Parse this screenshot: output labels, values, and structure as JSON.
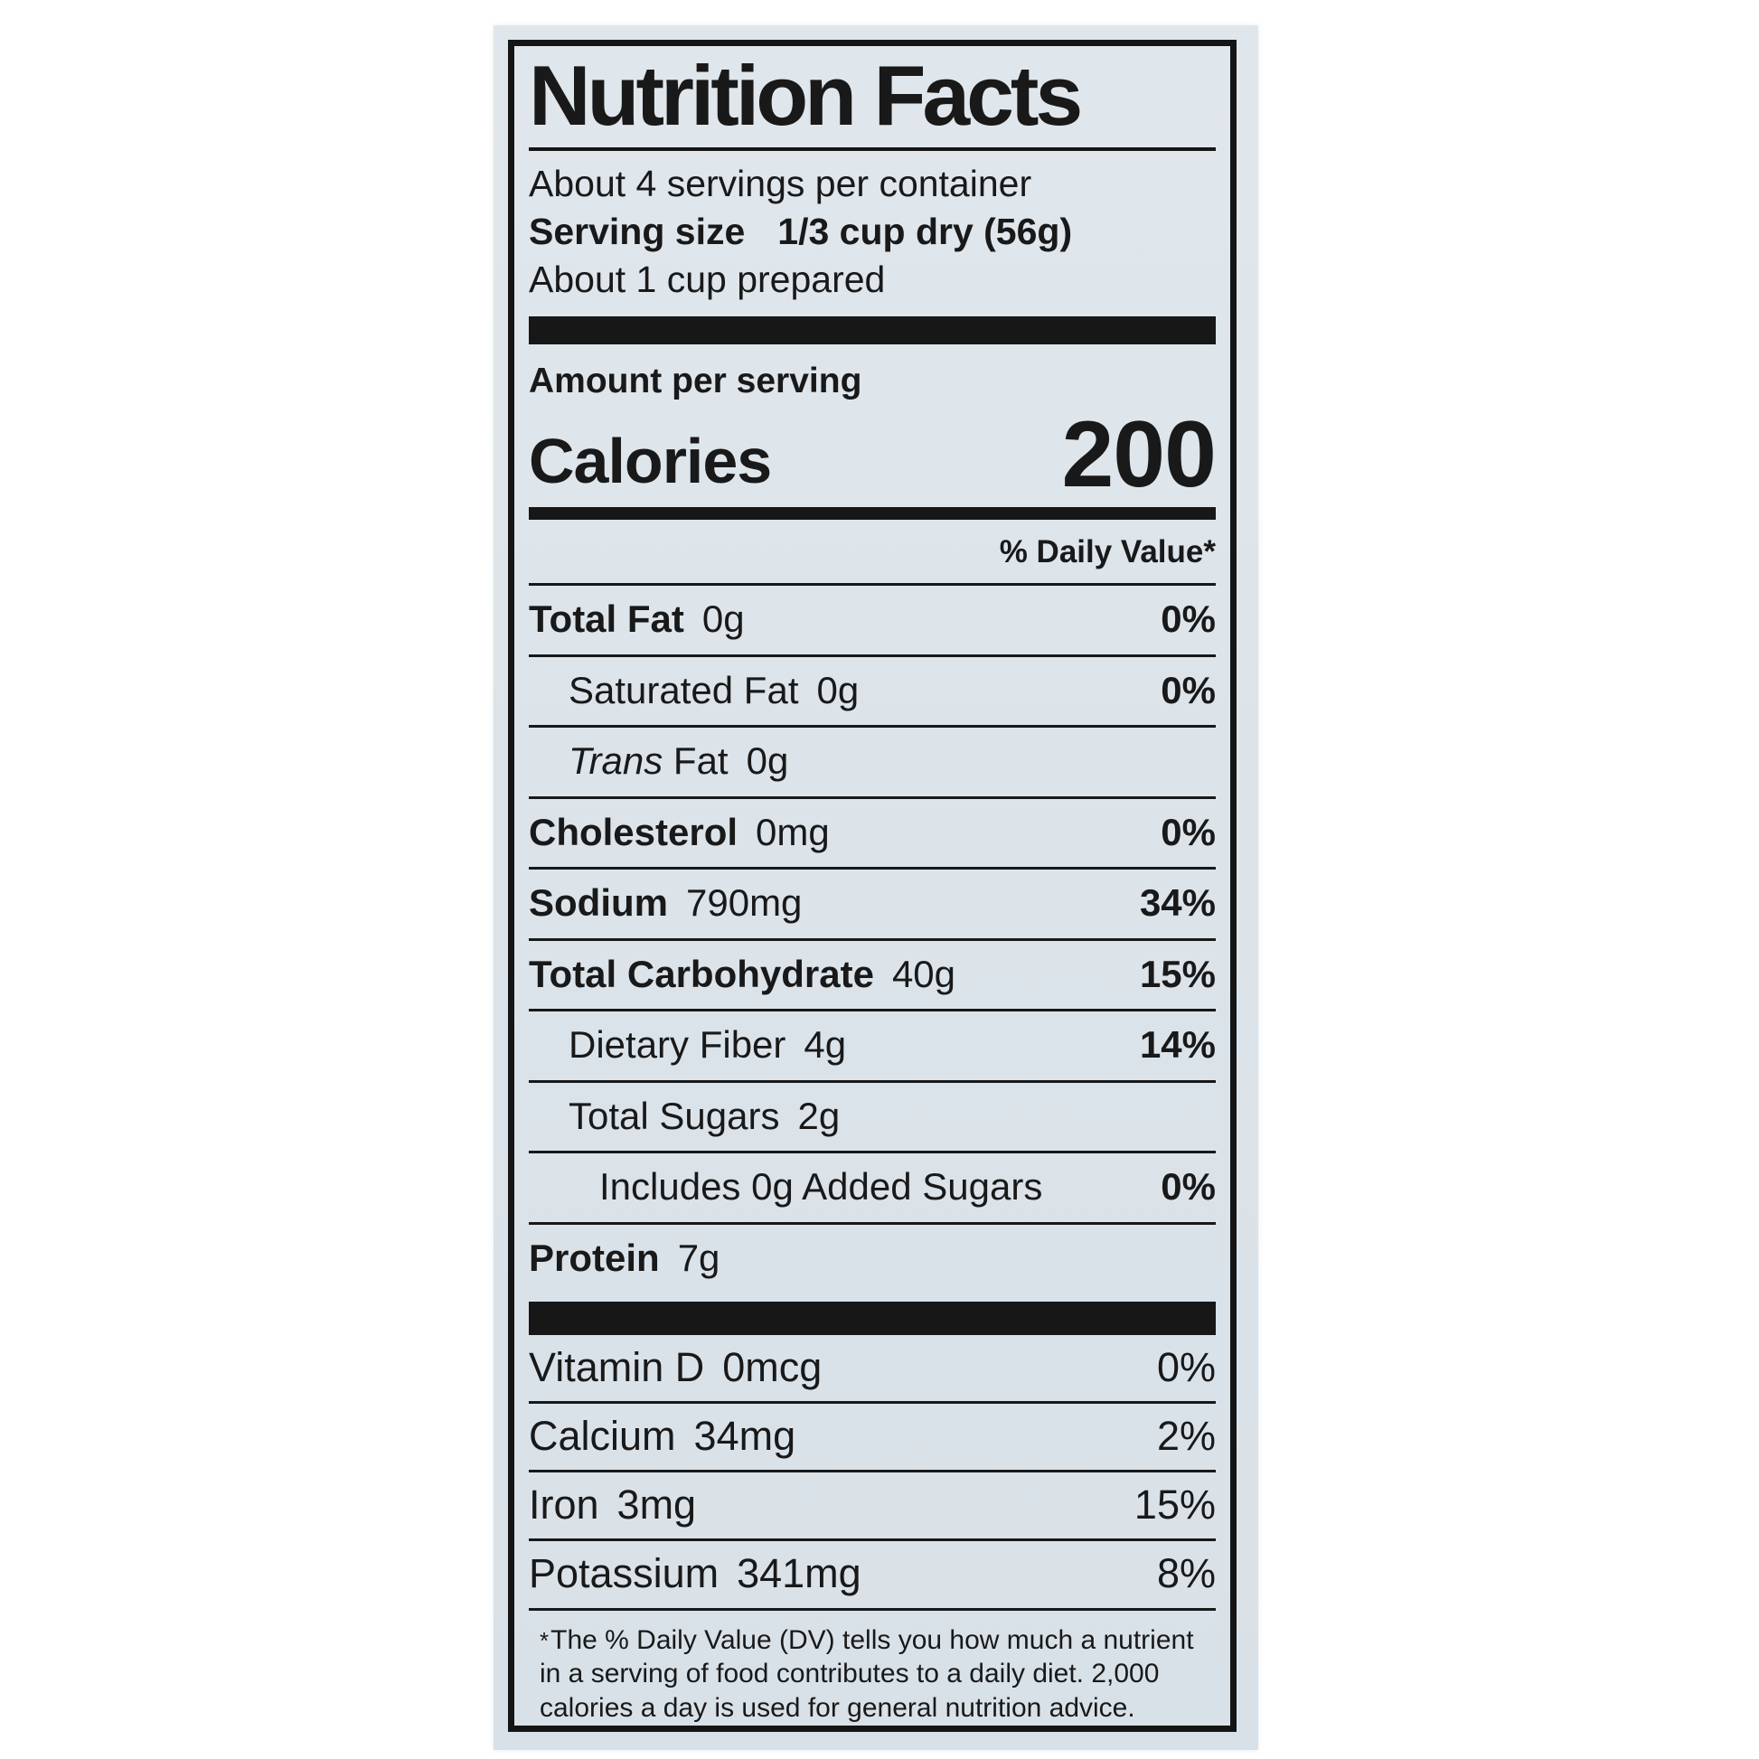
{
  "label": {
    "title": "Nutrition Facts",
    "servings_per_container": "About 4 servings per container",
    "serving_size_label": "Serving size",
    "serving_size_value": "1/3 cup dry (56g)",
    "serving_size_note": "About 1 cup prepared",
    "amount_per_serving": "Amount per serving",
    "calories_label": "Calories",
    "calories_value": "200",
    "daily_value_header": "% Daily Value*",
    "nutrients": [
      {
        "name": "Total Fat",
        "amount": "0g",
        "dv": "0%"
      },
      {
        "name": "Saturated Fat",
        "amount": "0g",
        "dv": "0%"
      },
      {
        "name_italic": "Trans",
        "name_rest": "Fat",
        "amount": "0g",
        "dv": ""
      },
      {
        "name": "Cholesterol",
        "amount": "0mg",
        "dv": "0%"
      },
      {
        "name": "Sodium",
        "amount": "790mg",
        "dv": "34%"
      },
      {
        "name": "Total Carbohydrate",
        "amount": "40g",
        "dv": "15%"
      },
      {
        "name": "Dietary Fiber",
        "amount": "4g",
        "dv": "14%"
      },
      {
        "name": "Total Sugars",
        "amount": "2g",
        "dv": ""
      },
      {
        "name": "Includes 0g Added Sugars",
        "amount": "",
        "dv": "0%"
      },
      {
        "name": "Protein",
        "amount": "7g",
        "dv": ""
      }
    ],
    "micronutrients": [
      {
        "name": "Vitamin D",
        "amount": "0mcg",
        "dv": "0%"
      },
      {
        "name": "Calcium",
        "amount": "34mg",
        "dv": "2%"
      },
      {
        "name": "Iron",
        "amount": "3mg",
        "dv": "15%"
      },
      {
        "name": "Potassium",
        "amount": "341mg",
        "dv": "8%"
      }
    ],
    "footnote_asterisk": "*",
    "footnote_lines": [
      "The % Daily Value (DV) tells you how much a nutrient",
      "in a serving of food contributes to a daily diet. 2,000",
      "calories a day is used for general nutrition advice."
    ]
  }
}
